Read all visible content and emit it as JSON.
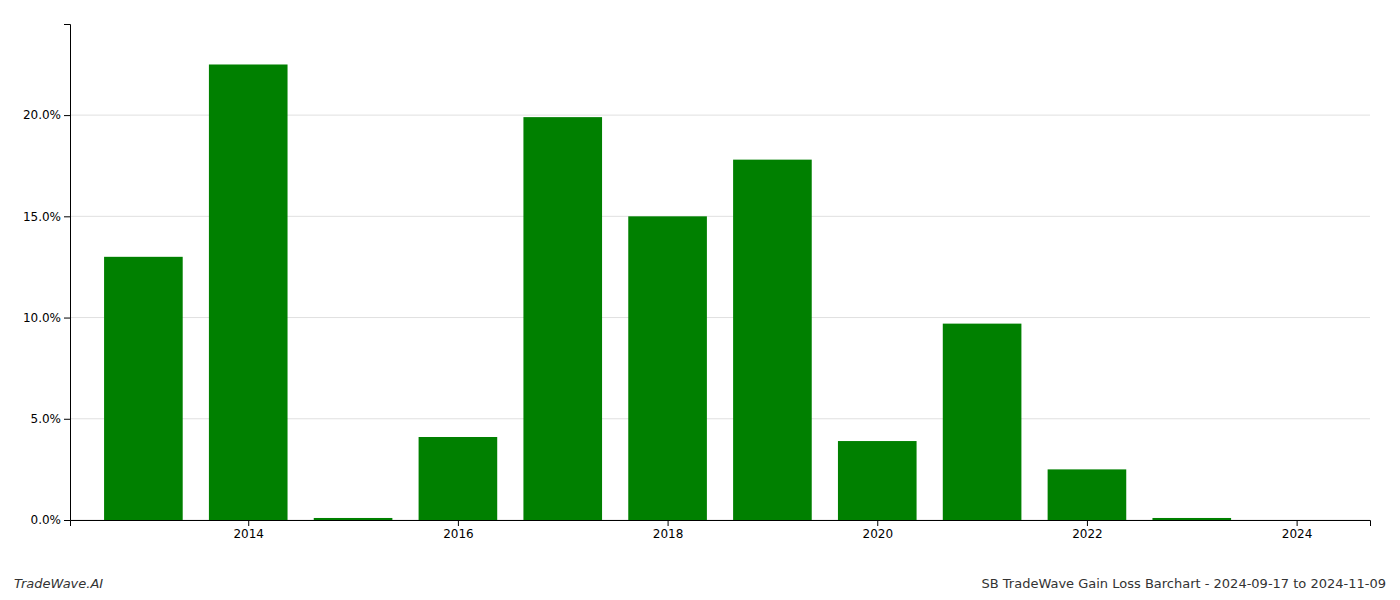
{
  "chart_data": {
    "type": "bar",
    "x": [
      2013,
      2014,
      2015,
      2016,
      2017,
      2018,
      2019,
      2020,
      2021,
      2022,
      2023
    ],
    "values": [
      0.13,
      0.225,
      0.001,
      0.041,
      0.199,
      0.15,
      0.178,
      0.039,
      0.097,
      0.025,
      0.001
    ],
    "color": "#008000",
    "xlim": [
      2012.3,
      2024.7
    ],
    "xticks": [
      2014,
      2016,
      2018,
      2020,
      2022,
      2024
    ],
    "ylim": [
      0,
      0.245
    ],
    "yticks": [
      {
        "value": 0.0,
        "label": "0.0%"
      },
      {
        "value": 0.05,
        "label": "5.0%"
      },
      {
        "value": 0.1,
        "label": "10.0%"
      },
      {
        "value": 0.15,
        "label": "15.0%"
      },
      {
        "value": 0.2,
        "label": "20.0%"
      }
    ],
    "grid": true,
    "annotations": [
      "TradeWave.AI",
      "SB TradeWave Gain Loss Barchart - 2024-09-17 to 2024-11-09"
    ]
  }
}
